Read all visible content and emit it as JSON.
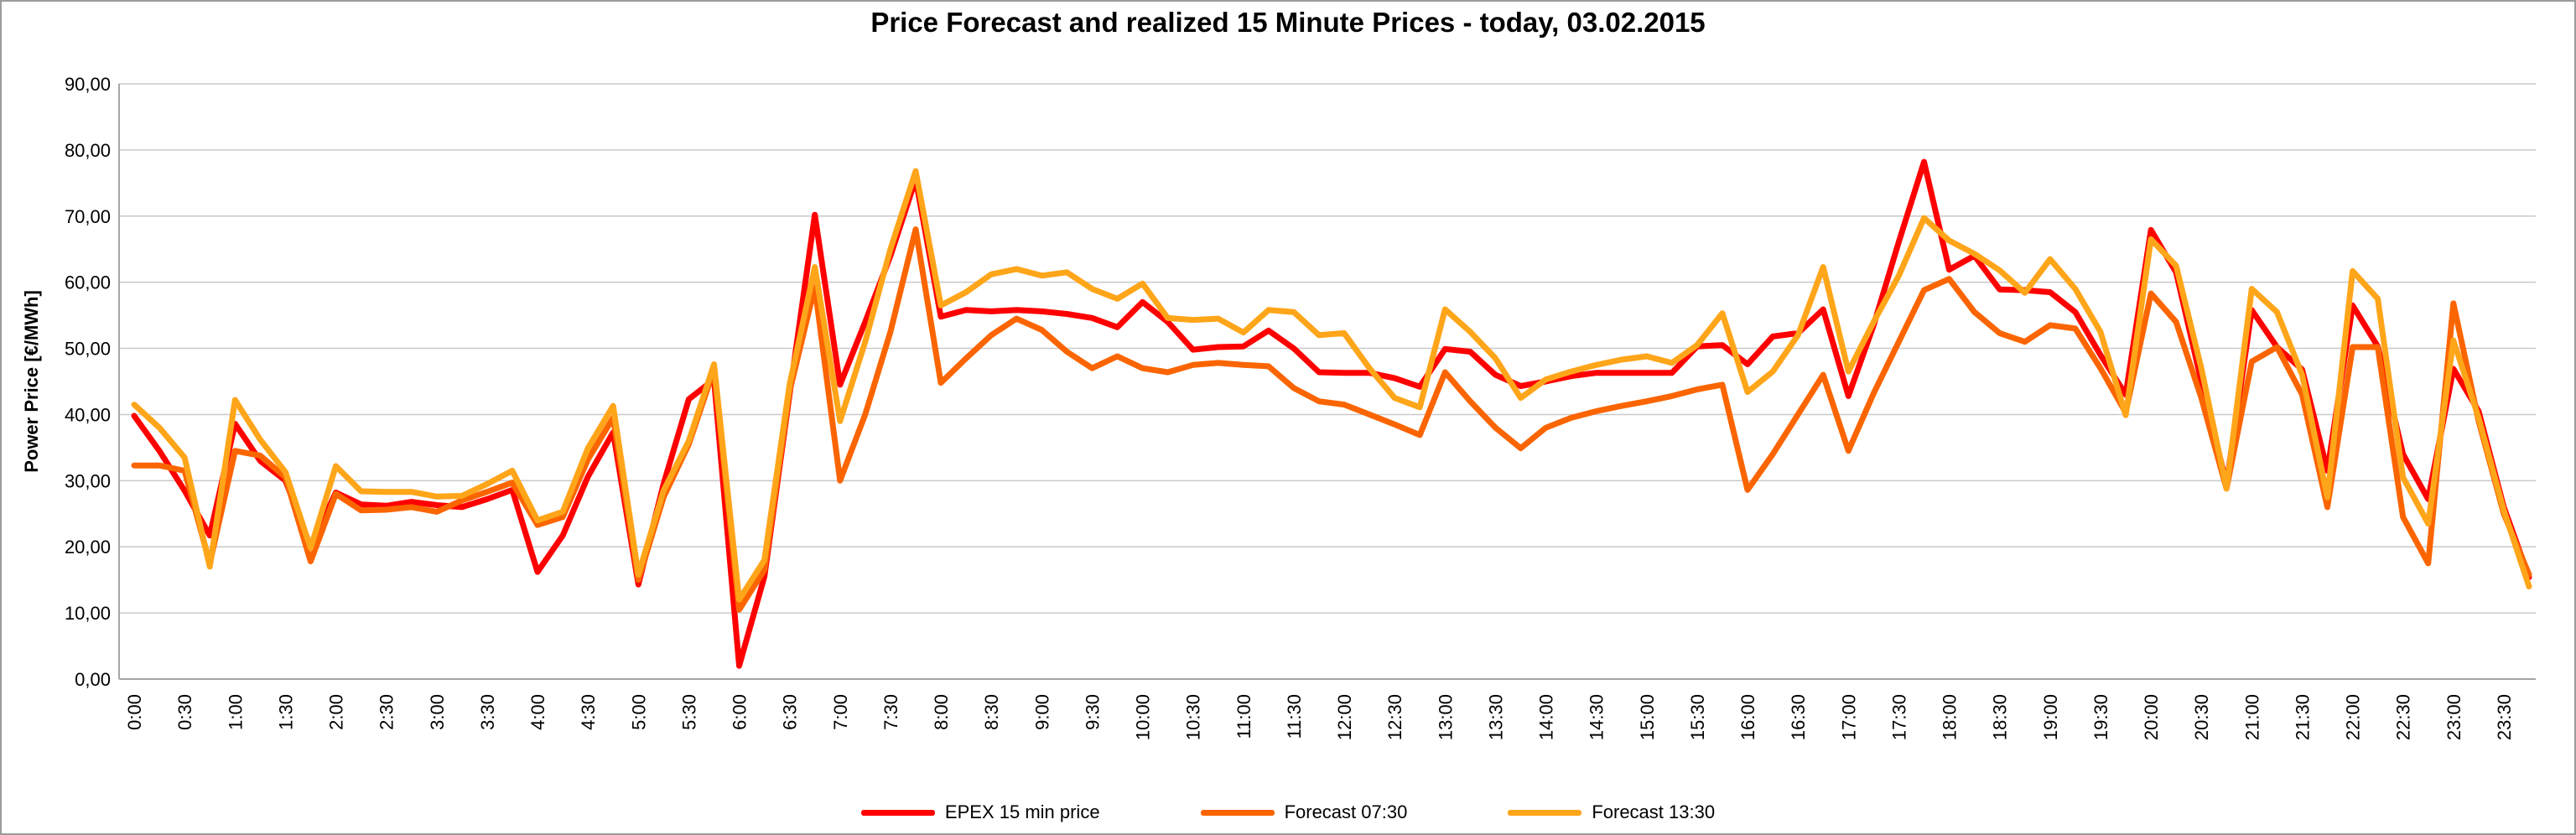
{
  "chart_data": {
    "type": "line",
    "title": "Price Forecast and realized 15 Minute Prices - today, 03.02.2015",
    "ylabel": "Power Price [€/MWh]",
    "xlabel": "",
    "ylim": [
      0,
      90
    ],
    "ytick_step": 10,
    "ytick_labels": [
      "0,00",
      "10,00",
      "20,00",
      "30,00",
      "40,00",
      "50,00",
      "60,00",
      "70,00",
      "80,00",
      "90,00"
    ],
    "grid": true,
    "legend_position": "bottom",
    "xtick_labels": [
      "0:00",
      "0:30",
      "1:00",
      "1:30",
      "2:00",
      "2:30",
      "3:00",
      "3:30",
      "4:00",
      "4:30",
      "5:00",
      "5:30",
      "6:00",
      "6:30",
      "7:00",
      "7:30",
      "8:00",
      "8:30",
      "9:00",
      "9:30",
      "10:00",
      "10:30",
      "11:00",
      "11:30",
      "12:00",
      "12:30",
      "13:00",
      "13:30",
      "14:00",
      "14:30",
      "15:00",
      "15:30",
      "16:00",
      "16:30",
      "17:00",
      "17:30",
      "18:00",
      "18:30",
      "19:00",
      "19:30",
      "20:00",
      "20:30",
      "21:00",
      "21:30",
      "22:00",
      "22:30",
      "23:00",
      "23:30"
    ],
    "x": [
      "0:00",
      "0:15",
      "0:30",
      "0:45",
      "1:00",
      "1:15",
      "1:30",
      "1:45",
      "2:00",
      "2:15",
      "2:30",
      "2:45",
      "3:00",
      "3:15",
      "3:30",
      "3:45",
      "4:00",
      "4:15",
      "4:30",
      "4:45",
      "5:00",
      "5:15",
      "5:30",
      "5:45",
      "6:00",
      "6:15",
      "6:30",
      "6:45",
      "7:00",
      "7:15",
      "7:30",
      "7:45",
      "8:00",
      "8:15",
      "8:30",
      "8:45",
      "9:00",
      "9:15",
      "9:30",
      "9:45",
      "10:00",
      "10:15",
      "10:30",
      "10:45",
      "11:00",
      "11:15",
      "11:30",
      "11:45",
      "12:00",
      "12:15",
      "12:30",
      "12:45",
      "13:00",
      "13:15",
      "13:30",
      "13:45",
      "14:00",
      "14:15",
      "14:30",
      "14:45",
      "15:00",
      "15:15",
      "15:30",
      "15:45",
      "16:00",
      "16:15",
      "16:30",
      "16:45",
      "17:00",
      "17:15",
      "17:30",
      "17:45",
      "18:00",
      "18:15",
      "18:30",
      "18:45",
      "19:00",
      "19:15",
      "19:30",
      "19:45",
      "20:00",
      "20:15",
      "20:30",
      "20:45",
      "21:00",
      "21:15",
      "21:30",
      "21:45",
      "22:00",
      "22:15",
      "22:30",
      "22:45",
      "23:00",
      "23:15",
      "23:30",
      "23:45"
    ],
    "series": [
      {
        "name": "EPEX 15 min price",
        "color": "#FF0000",
        "values": [
          39.8,
          34.5,
          28.5,
          21.7,
          38.6,
          33.0,
          30.0,
          20.0,
          28.2,
          26.4,
          26.2,
          26.8,
          26.3,
          26.0,
          27.2,
          28.6,
          16.2,
          21.7,
          30.6,
          37.3,
          14.3,
          29.5,
          42.3,
          45.3,
          2.0,
          15.5,
          43.0,
          70.2,
          44.5,
          54.0,
          64.0,
          75.6,
          54.8,
          55.8,
          55.6,
          55.8,
          55.6,
          55.2,
          54.6,
          53.2,
          57.0,
          54.0,
          49.8,
          50.2,
          50.3,
          52.7,
          50.0,
          46.4,
          46.3,
          46.3,
          45.5,
          44.2,
          49.9,
          49.5,
          46.0,
          44.3,
          45.0,
          45.8,
          46.3,
          46.3,
          46.3,
          46.3,
          50.3,
          50.5,
          47.6,
          51.8,
          52.3,
          55.9,
          42.8,
          53.5,
          66.1,
          78.2,
          61.9,
          64.0,
          58.9,
          58.8,
          58.5,
          55.5,
          49.0,
          43.0,
          67.9,
          61.5,
          45.0,
          29.5,
          55.8,
          50.2,
          46.8,
          31.5,
          56.5,
          50.3,
          34.0,
          27.2,
          46.9,
          40.5,
          26.0,
          15.4
        ]
      },
      {
        "name": "Forecast 07:30",
        "color": "#FB6500",
        "values": [
          32.3,
          32.3,
          31.5,
          17.5,
          34.5,
          33.8,
          30.5,
          17.8,
          28.0,
          25.5,
          25.6,
          26.0,
          25.3,
          27.0,
          28.3,
          29.7,
          23.3,
          24.5,
          33.2,
          39.5,
          15.0,
          27.5,
          35.5,
          46.8,
          10.5,
          16.5,
          43.5,
          59.3,
          30.0,
          40.0,
          52.5,
          68.0,
          44.8,
          48.5,
          52.0,
          54.5,
          52.8,
          49.5,
          47.0,
          48.8,
          47.0,
          46.4,
          47.5,
          47.8,
          47.5,
          47.3,
          44.0,
          42.0,
          41.5,
          40.0,
          38.5,
          36.9,
          46.4,
          42.0,
          38.0,
          34.9,
          38.0,
          39.5,
          40.5,
          41.3,
          42.0,
          42.8,
          43.8,
          44.5,
          28.6,
          34.0,
          40.0,
          46.0,
          34.5,
          43.2,
          51.0,
          58.8,
          60.5,
          55.5,
          52.3,
          51.0,
          53.5,
          53.0,
          47.0,
          40.3,
          58.3,
          54.0,
          42.5,
          28.8,
          48.0,
          50.2,
          43.0,
          26.0,
          50.2,
          50.2,
          24.5,
          17.5,
          56.8,
          39.0,
          25.0,
          15.8
        ]
      },
      {
        "name": "Forecast 13:30",
        "color": "#FFA519",
        "values": [
          41.5,
          38.0,
          33.5,
          17.0,
          42.2,
          36.2,
          31.3,
          19.8,
          32.2,
          28.4,
          28.3,
          28.3,
          27.6,
          27.7,
          29.5,
          31.5,
          24.0,
          25.3,
          34.9,
          41.3,
          15.8,
          28.5,
          36.0,
          47.6,
          12.0,
          18.0,
          44.5,
          62.3,
          39.0,
          51.0,
          65.0,
          76.8,
          56.5,
          58.5,
          61.2,
          62.0,
          61.0,
          61.5,
          59.0,
          57.5,
          59.8,
          54.6,
          54.3,
          54.5,
          52.4,
          55.8,
          55.5,
          52.0,
          52.3,
          47.0,
          42.5,
          41.1,
          55.9,
          52.5,
          48.5,
          42.5,
          45.3,
          46.5,
          47.5,
          48.3,
          48.8,
          47.8,
          50.5,
          55.3,
          43.4,
          46.5,
          52.0,
          62.3,
          46.5,
          54.0,
          61.0,
          69.7,
          66.3,
          64.3,
          61.8,
          58.4,
          63.5,
          59.0,
          52.5,
          39.9,
          66.5,
          62.5,
          47.0,
          28.8,
          59.0,
          55.5,
          46.0,
          27.5,
          61.7,
          57.5,
          30.5,
          23.5,
          51.2,
          39.5,
          25.5,
          14.0
        ]
      }
    ],
    "colors": {
      "gridline": "#C9C9C9",
      "axis_line": "#A6A6A6",
      "text": "#000000",
      "background": "#FFFFFF"
    }
  }
}
